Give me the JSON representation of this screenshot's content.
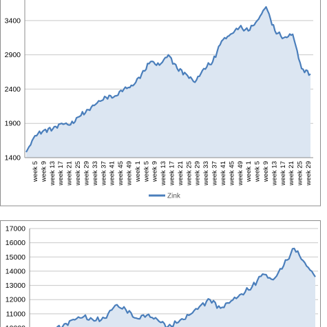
{
  "chart_data": [
    {
      "type": "area",
      "legend_position": "bottom",
      "grid": "horizontal",
      "ylim": [
        1400,
        3700
      ],
      "yticks": [
        1400,
        1900,
        2400,
        2900,
        3400
      ],
      "xtick_labels": [
        "week  5",
        "week  9",
        "week 13",
        "week 17",
        "week 21",
        "week 25",
        "week 29",
        "week 33",
        "week 37",
        "week 41",
        "week 45",
        "week 49",
        "week 1",
        "week 5",
        "week 9",
        "week 13",
        "week 17",
        "week 21",
        "week 25",
        "week 29",
        "week 33",
        "week 37",
        "week 41",
        "week 45",
        "week 49",
        "week 1",
        "week 5",
        "week 9",
        "week 13",
        "week 17",
        "week 21",
        "week 25",
        "week 29"
      ],
      "series": [
        {
          "name": "Zink",
          "color": "#4a7ebb",
          "fill": "#dce6f2",
          "values": [
            1480,
            1720,
            1800,
            1820,
            1900,
            1880,
            2000,
            2100,
            2200,
            2280,
            2300,
            2400,
            2450,
            2620,
            2800,
            2750,
            2900,
            2700,
            2620,
            2500,
            2700,
            2800,
            3100,
            3200,
            3300,
            3250,
            3400,
            3600,
            3250,
            3150,
            3200,
            2700,
            2620
          ]
        }
      ]
    },
    {
      "type": "area",
      "grid": "horizontal",
      "ylim": [
        10000,
        17000
      ],
      "yticks": [
        10000,
        11000,
        12000,
        13000,
        14000,
        15000,
        16000,
        17000
      ],
      "series": [
        {
          "color": "#4a7ebb",
          "fill": "#dce6f2",
          "values": [
            9600,
            9700,
            9900,
            10100,
            10600,
            10800,
            10500,
            10700,
            11600,
            11300,
            10700,
            10900,
            10600,
            10100,
            10400,
            10900,
            11500,
            12000,
            11400,
            11900,
            12400,
            12900,
            13800,
            13400,
            14400,
            15600,
            14600,
            13600
          ]
        }
      ]
    }
  ]
}
